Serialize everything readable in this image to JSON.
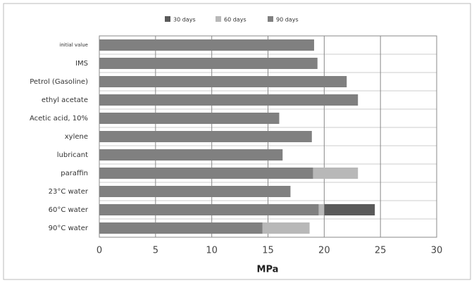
{
  "chart_data": {
    "type": "bar",
    "orientation": "horizontal",
    "x_label": "MPa",
    "categories": [
      "initial value",
      "IMS",
      "Petrol (Gasoline)",
      "ethyl acetate",
      "Acetic acid, 10%",
      "xylene",
      "lubricant",
      "paraffin",
      "23°C water",
      "60°C water",
      "90°C water"
    ],
    "series": [
      {
        "name": "30 days",
        "color": "#5a5a5a",
        "values": [
          null,
          null,
          null,
          null,
          null,
          null,
          null,
          null,
          null,
          24.5,
          null
        ]
      },
      {
        "name": "60 days",
        "color": "#b8b8b8",
        "values": [
          null,
          null,
          null,
          null,
          null,
          null,
          null,
          23,
          null,
          20,
          18.7
        ]
      },
      {
        "name": "90 days",
        "color": "#808080",
        "values": [
          19.1,
          19.4,
          22,
          23,
          16,
          18.9,
          16.3,
          19,
          17,
          19.5,
          14.5
        ]
      }
    ],
    "xlim": [
      0,
      30
    ],
    "xticks": [
      0,
      5,
      10,
      15,
      20,
      25,
      30
    ],
    "grid": true
  }
}
